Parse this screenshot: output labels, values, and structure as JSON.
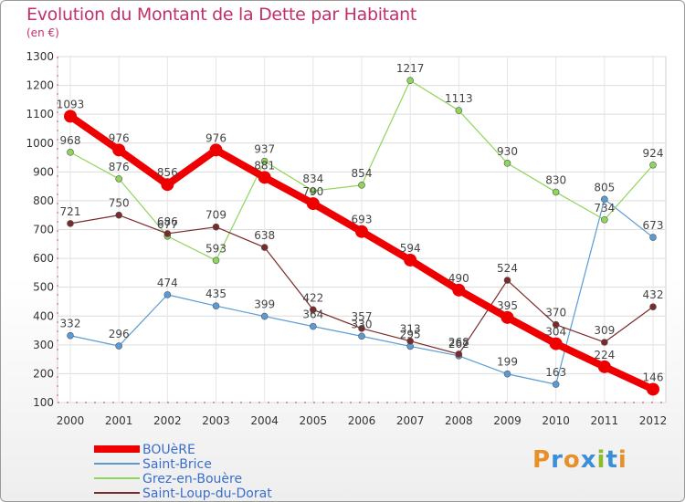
{
  "header": {
    "title": "Evolution du Montant de la Dette par Habitant",
    "unit": "(en €)"
  },
  "logo": {
    "text": "Proxiti",
    "colors": [
      "#e7902a",
      "#3b8fd9",
      "#e7902a",
      "#3b8fd9",
      "#8dbb2b",
      "#3b8fd9",
      "#e7902a"
    ]
  },
  "chart_data": {
    "type": "line",
    "x": [
      "2000",
      "2001",
      "2002",
      "2003",
      "2004",
      "2005",
      "2006",
      "2007",
      "2008",
      "2009",
      "2010",
      "2011",
      "2012"
    ],
    "ylim": [
      100,
      1300
    ],
    "yticks": [
      100,
      200,
      300,
      400,
      500,
      600,
      700,
      800,
      900,
      1000,
      1100,
      1200,
      1300
    ],
    "legend_position": "bottom-left",
    "series": [
      {
        "name": "BOUèRE",
        "color": "#ee0000",
        "width": 8,
        "marker": 7,
        "values": [
          1093,
          976,
          856,
          976,
          881,
          790,
          693,
          594,
          490,
          395,
          304,
          224,
          146
        ]
      },
      {
        "name": "Saint-Brice",
        "color": "#5b9bd5",
        "width": 1.2,
        "marker": 3.5,
        "values": [
          332,
          296,
          474,
          435,
          399,
          364,
          330,
          295,
          262,
          199,
          163,
          805,
          673
        ]
      },
      {
        "name": "Grez-en-Bouère",
        "color": "#8ed65a",
        "width": 1.2,
        "marker": 3.5,
        "values": [
          968,
          876,
          677,
          593,
          937,
          834,
          854,
          1217,
          1113,
          930,
          830,
          734,
          924
        ]
      },
      {
        "name": "Saint-Loup-du-Dorat",
        "color": "#7a2a2a",
        "width": 1.2,
        "marker": 3.5,
        "values": [
          721,
          750,
          686,
          709,
          638,
          422,
          357,
          313,
          268,
          524,
          370,
          309,
          432
        ]
      }
    ]
  }
}
